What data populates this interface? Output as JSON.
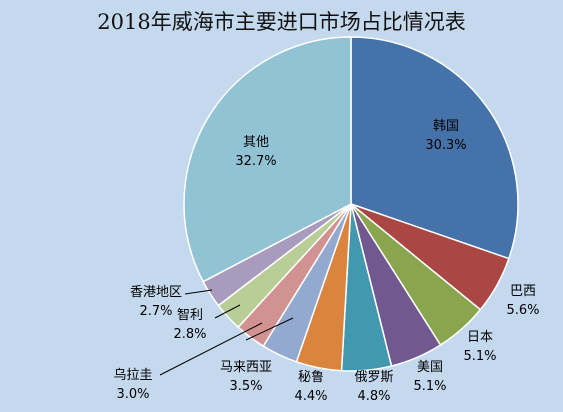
{
  "chart_data": {
    "type": "pie",
    "title": "2018年威海市主要进口市场占比情况表",
    "slices": [
      {
        "name": "韩国",
        "value": 30.3,
        "label": "30.3%",
        "color": "#4672aa"
      },
      {
        "name": "巴西",
        "value": 5.6,
        "label": "5.6%",
        "color": "#aa4744"
      },
      {
        "name": "日本",
        "value": 5.1,
        "label": "5.1%",
        "color": "#89a54e"
      },
      {
        "name": "美国",
        "value": 5.1,
        "label": "5.1%",
        "color": "#71588f"
      },
      {
        "name": "俄罗斯",
        "value": 4.8,
        "label": "4.8%",
        "color": "#4198af"
      },
      {
        "name": "秘鲁",
        "value": 4.4,
        "label": "4.4%",
        "color": "#db843d"
      },
      {
        "name": "马来西亚",
        "value": 3.5,
        "label": "3.5%",
        "color": "#93a9cf"
      },
      {
        "name": "乌拉圭",
        "value": 3.0,
        "label": "3.0%",
        "color": "#d19392"
      },
      {
        "name": "智利",
        "value": 2.8,
        "label": "2.8%",
        "color": "#b9cd96"
      },
      {
        "name": "香港地区",
        "value": 2.7,
        "label": "2.7%",
        "color": "#a99bbd"
      },
      {
        "name": "其他",
        "value": 32.7,
        "label": "32.7%",
        "color": "#92c3d4"
      }
    ]
  }
}
